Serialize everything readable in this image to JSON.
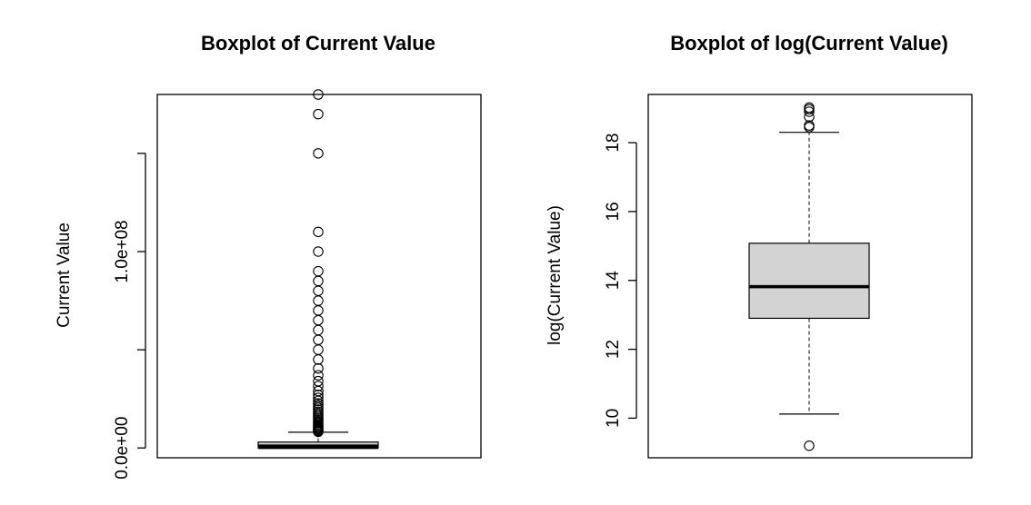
{
  "chart_data": [
    {
      "type": "boxplot",
      "title": "Boxplot of Current Value",
      "xlabel": "",
      "ylabel": "Current Value",
      "ylim": [
        -5000000,
        180000000
      ],
      "yticks": [
        0,
        50000000,
        100000000,
        150000000
      ],
      "ytick_labels": [
        "0.0e+00",
        "",
        "1.0e+08",
        ""
      ],
      "box": {
        "whisker_low": 0,
        "q1": 100000,
        "median": 600000,
        "q3": 3000000,
        "whisker_high": 8000000,
        "fill": "#d3d3d3"
      },
      "outliers": [
        8200000,
        8600000,
        9000000,
        9400000,
        9800000,
        10300000,
        10800000,
        11400000,
        12000000,
        12700000,
        13400000,
        14200000,
        15000000,
        15800000,
        16700000,
        17600000,
        18500000,
        19500000,
        20500000,
        21600000,
        22700000,
        24000000,
        25500000,
        27000000,
        29000000,
        31500000,
        34000000,
        37000000,
        40500000,
        45000000,
        50000000,
        55000000,
        60000000,
        65000000,
        70000000,
        75000000,
        80000000,
        85000000,
        90000000,
        100000000,
        110000000,
        150000000,
        170000000,
        180000000
      ]
    },
    {
      "type": "boxplot",
      "title": "Boxplot of log(Current Value)",
      "xlabel": "",
      "ylabel": "log(Current Value)",
      "ylim": [
        8.85,
        19.4
      ],
      "yticks": [
        10,
        12,
        14,
        16,
        18
      ],
      "ytick_labels": [
        "10",
        "12",
        "14",
        "16",
        "18"
      ],
      "box": {
        "whisker_low": 10.12,
        "q1": 12.9,
        "median": 13.82,
        "q3": 15.08,
        "whisker_high": 18.3,
        "fill": "#d3d3d3"
      },
      "outliers": [
        9.2,
        18.45,
        18.5,
        18.75,
        18.9,
        18.97,
        19.02
      ]
    }
  ]
}
